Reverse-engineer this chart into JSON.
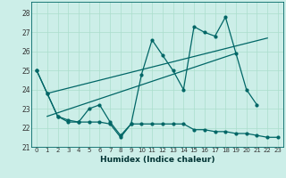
{
  "xlabel": "Humidex (Indice chaleur)",
  "bg_color": "#cceee8",
  "line_color": "#006666",
  "grid_color": "#aaddcc",
  "xlim": [
    -0.5,
    23.5
  ],
  "ylim": [
    21,
    28.6
  ],
  "yticks": [
    21,
    22,
    23,
    24,
    25,
    26,
    27,
    28
  ],
  "xticks": [
    0,
    1,
    2,
    3,
    4,
    5,
    6,
    7,
    8,
    9,
    10,
    11,
    12,
    13,
    14,
    15,
    16,
    17,
    18,
    19,
    20,
    21,
    22,
    23
  ],
  "series_bottom": [
    25.0,
    23.8,
    22.6,
    22.3,
    22.3,
    22.3,
    22.3,
    22.2,
    21.5,
    22.2,
    22.2,
    22.2,
    22.2,
    22.2,
    22.2,
    21.9,
    21.9,
    21.8,
    21.8,
    21.7,
    21.7,
    21.6,
    21.5,
    21.5
  ],
  "series_main": [
    25.0,
    23.8,
    22.6,
    22.4,
    22.3,
    23.0,
    23.2,
    22.3,
    21.6,
    22.2,
    24.8,
    26.6,
    25.8,
    25.0,
    24.0,
    27.3,
    27.0,
    26.8,
    27.8,
    25.9,
    24.0,
    23.2
  ],
  "regline1_x": [
    1,
    22
  ],
  "regline1_y": [
    23.8,
    26.7
  ],
  "regline2_x": [
    1,
    19
  ],
  "regline2_y": [
    22.6,
    25.9
  ]
}
